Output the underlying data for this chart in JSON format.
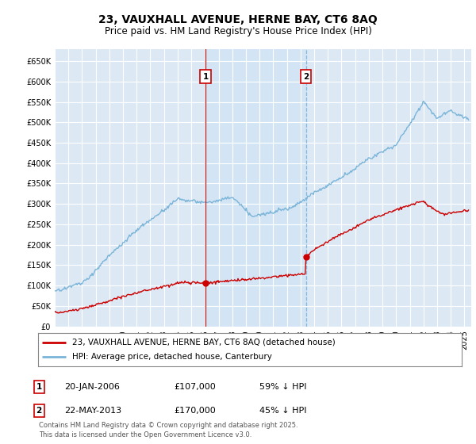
{
  "title": "23, VAUXHALL AVENUE, HERNE BAY, CT6 8AQ",
  "subtitle": "Price paid vs. HM Land Registry's House Price Index (HPI)",
  "legend_line1": "23, VAUXHALL AVENUE, HERNE BAY, CT6 8AQ (detached house)",
  "legend_line2": "HPI: Average price, detached house, Canterbury",
  "annotation1_label": "1",
  "annotation1_date": "20-JAN-2006",
  "annotation1_price": "£107,000",
  "annotation1_hpi": "59% ↓ HPI",
  "annotation2_label": "2",
  "annotation2_date": "22-MAY-2013",
  "annotation2_price": "£170,000",
  "annotation2_hpi": "45% ↓ HPI",
  "footer": "Contains HM Land Registry data © Crown copyright and database right 2025.\nThis data is licensed under the Open Government Licence v3.0.",
  "hpi_color": "#7ab4d8",
  "price_color": "#cc0000",
  "sale1_vline_color": "#cc0000",
  "sale2_vline_color": "#7ab4d8",
  "shade_color": "#d0e4f5",
  "background_chart": "#dce9f5",
  "background_fig": "#ffffff",
  "ylim": [
    0,
    680000
  ],
  "ytick_step": 50000,
  "sale1_year": 2006.05,
  "sale1_price": 107000,
  "sale2_year": 2013.39,
  "sale2_price": 170000,
  "grid_color": "#ffffff",
  "marker_box_color": "#cc0000",
  "xmin": 1995,
  "xmax": 2025.5
}
